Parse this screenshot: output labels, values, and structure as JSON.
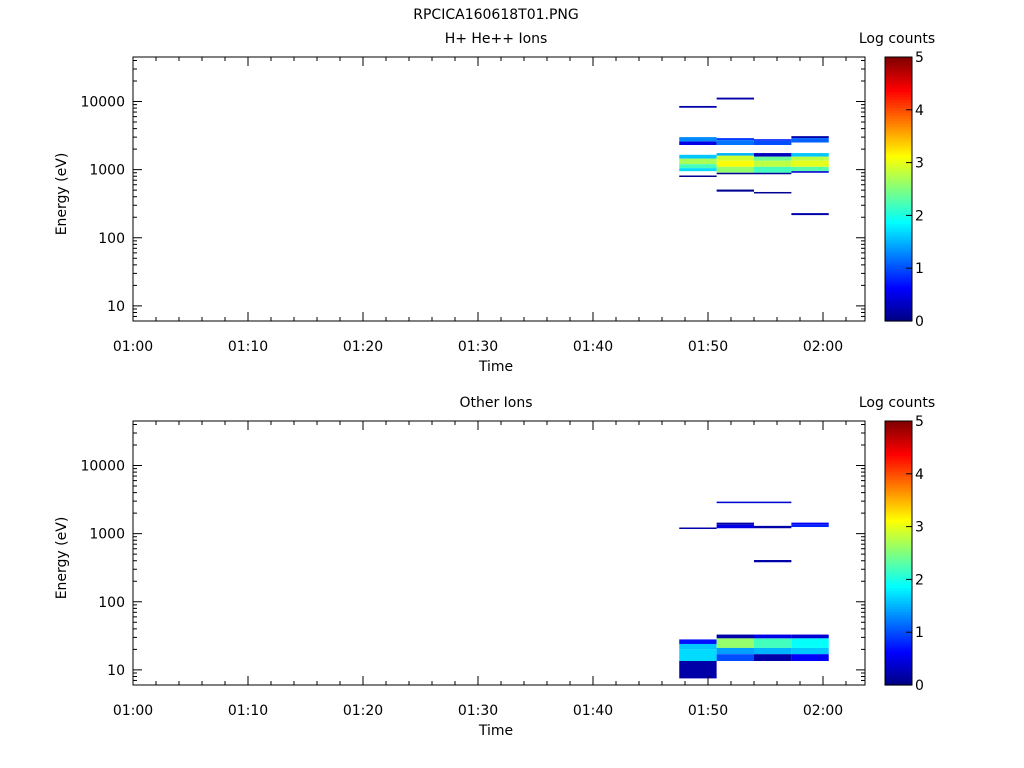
{
  "figure_title": "RPCICA160618T01.PNG",
  "chart_data": [
    {
      "type": "heatmap",
      "title": "H+ He++ Ions",
      "xlabel": "Time",
      "ylabel": "Energy (eV)",
      "x_ticks": [
        "01:00",
        "01:10",
        "01:20",
        "01:30",
        "01:40",
        "01:50",
        "02:00"
      ],
      "y_ticks": [
        "10",
        "100",
        "1000",
        "10000"
      ],
      "y_scale": "log",
      "ylim": [
        6,
        45000
      ],
      "colorbar": {
        "label": "Log counts",
        "ticks": [
          "0",
          "1",
          "2",
          "3",
          "4",
          "5"
        ],
        "range": [
          0,
          5
        ],
        "colormap": "jet"
      },
      "cells": [
        {
          "t0": "01:47:30",
          "t1": "01:50:45",
          "e0": 8100,
          "e1": 8600,
          "value": 0.2
        },
        {
          "t0": "01:47:30",
          "t1": "01:50:45",
          "e0": 2300,
          "e1": 2600,
          "value": 0.5
        },
        {
          "t0": "01:47:30",
          "t1": "01:50:45",
          "e0": 2600,
          "e1": 3000,
          "value": 1.3
        },
        {
          "t0": "01:47:30",
          "t1": "01:50:45",
          "e0": 1450,
          "e1": 1650,
          "value": 1.6
        },
        {
          "t0": "01:47:30",
          "t1": "01:50:45",
          "e0": 1200,
          "e1": 1450,
          "value": 2.7
        },
        {
          "t0": "01:47:30",
          "t1": "01:50:45",
          "e0": 1050,
          "e1": 1200,
          "value": 2.2
        },
        {
          "t0": "01:47:30",
          "t1": "01:50:45",
          "e0": 950,
          "e1": 1050,
          "value": 1.7
        },
        {
          "t0": "01:47:30",
          "t1": "01:50:45",
          "e0": 780,
          "e1": 820,
          "value": 0.1
        },
        {
          "t0": "01:50:45",
          "t1": "01:54:00",
          "e0": 10700,
          "e1": 11400,
          "value": 0.2
        },
        {
          "t0": "01:50:45",
          "t1": "01:54:00",
          "e0": 2700,
          "e1": 2900,
          "value": 0.9
        },
        {
          "t0": "01:50:45",
          "t1": "01:54:00",
          "e0": 2300,
          "e1": 2700,
          "value": 1.2
        },
        {
          "t0": "01:50:45",
          "t1": "01:54:00",
          "e0": 1600,
          "e1": 1750,
          "value": 1.5
        },
        {
          "t0": "01:50:45",
          "t1": "01:54:00",
          "e0": 1350,
          "e1": 1600,
          "value": 2.9
        },
        {
          "t0": "01:50:45",
          "t1": "01:54:00",
          "e0": 1100,
          "e1": 1350,
          "value": 3.1
        },
        {
          "t0": "01:50:45",
          "t1": "01:54:00",
          "e0": 900,
          "e1": 1100,
          "value": 2.6
        },
        {
          "t0": "01:50:45",
          "t1": "01:54:00",
          "e0": 860,
          "e1": 900,
          "value": 0.1
        },
        {
          "t0": "01:50:45",
          "t1": "01:54:00",
          "e0": 475,
          "e1": 510,
          "value": 0.1
        },
        {
          "t0": "01:54:00",
          "t1": "01:57:15",
          "e0": 2650,
          "e1": 2800,
          "value": 0.8
        },
        {
          "t0": "01:54:00",
          "t1": "01:57:15",
          "e0": 2300,
          "e1": 2650,
          "value": 1.0
        },
        {
          "t0": "01:54:00",
          "t1": "01:57:15",
          "e0": 1550,
          "e1": 1750,
          "value": 0.3
        },
        {
          "t0": "01:54:00",
          "t1": "01:57:15",
          "e0": 1350,
          "e1": 1550,
          "value": 2.4
        },
        {
          "t0": "01:54:00",
          "t1": "01:57:15",
          "e0": 1100,
          "e1": 1350,
          "value": 2.8
        },
        {
          "t0": "01:54:00",
          "t1": "01:57:15",
          "e0": 900,
          "e1": 1100,
          "value": 2.2
        },
        {
          "t0": "01:54:00",
          "t1": "01:57:15",
          "e0": 860,
          "e1": 900,
          "value": 0.1
        },
        {
          "t0": "01:54:00",
          "t1": "01:57:15",
          "e0": 450,
          "e1": 470,
          "value": 0.1
        },
        {
          "t0": "01:57:15",
          "t1": "02:00:30",
          "e0": 2900,
          "e1": 3100,
          "value": 0.2
        },
        {
          "t0": "01:57:15",
          "t1": "02:00:30",
          "e0": 2500,
          "e1": 2900,
          "value": 1.1
        },
        {
          "t0": "01:57:15",
          "t1": "02:00:30",
          "e0": 1550,
          "e1": 1750,
          "value": 1.6
        },
        {
          "t0": "01:57:15",
          "t1": "02:00:30",
          "e0": 1350,
          "e1": 1550,
          "value": 2.8
        },
        {
          "t0": "01:57:15",
          "t1": "02:00:30",
          "e0": 1100,
          "e1": 1350,
          "value": 3.0
        },
        {
          "t0": "01:57:15",
          "t1": "02:00:30",
          "e0": 950,
          "e1": 1100,
          "value": 2.3
        },
        {
          "t0": "01:57:15",
          "t1": "02:00:30",
          "e0": 900,
          "e1": 950,
          "value": 0.4
        },
        {
          "t0": "01:57:15",
          "t1": "02:00:30",
          "e0": 215,
          "e1": 230,
          "value": 0.2
        }
      ]
    },
    {
      "type": "heatmap",
      "title": "Other Ions",
      "xlabel": "Time",
      "ylabel": "Energy (eV)",
      "x_ticks": [
        "01:00",
        "01:10",
        "01:20",
        "01:30",
        "01:40",
        "01:50",
        "02:00"
      ],
      "y_ticks": [
        "10",
        "100",
        "1000",
        "10000"
      ],
      "y_scale": "log",
      "ylim": [
        6,
        45000
      ],
      "colorbar": {
        "label": "Log counts",
        "ticks": [
          "0",
          "1",
          "2",
          "3",
          "4",
          "5"
        ],
        "range": [
          0,
          5
        ],
        "colormap": "jet"
      },
      "cells": [
        {
          "t0": "01:47:30",
          "t1": "01:50:45",
          "e0": 1170,
          "e1": 1230,
          "value": 0.2
        },
        {
          "t0": "01:47:30",
          "t1": "01:50:45",
          "e0": 24,
          "e1": 28,
          "value": 0.7
        },
        {
          "t0": "01:47:30",
          "t1": "01:50:45",
          "e0": 20,
          "e1": 24,
          "value": 1.6
        },
        {
          "t0": "01:47:30",
          "t1": "01:50:45",
          "e0": 13.5,
          "e1": 20,
          "value": 1.7
        },
        {
          "t0": "01:47:30",
          "t1": "01:50:45",
          "e0": 7.5,
          "e1": 13.5,
          "value": 0.2
        },
        {
          "t0": "01:50:45",
          "t1": "01:54:00",
          "e0": 2800,
          "e1": 2950,
          "value": 0.4
        },
        {
          "t0": "01:50:45",
          "t1": "01:54:00",
          "e0": 1350,
          "e1": 1450,
          "value": 0.2
        },
        {
          "t0": "01:50:45",
          "t1": "01:54:00",
          "e0": 1200,
          "e1": 1350,
          "value": 0.5
        },
        {
          "t0": "01:50:45",
          "t1": "01:54:00",
          "e0": 29,
          "e1": 33,
          "value": 0.2
        },
        {
          "t0": "01:50:45",
          "t1": "01:54:00",
          "e0": 21,
          "e1": 29,
          "value": 2.6
        },
        {
          "t0": "01:50:45",
          "t1": "01:54:00",
          "e0": 17,
          "e1": 21,
          "value": 1.4
        },
        {
          "t0": "01:50:45",
          "t1": "01:54:00",
          "e0": 13.5,
          "e1": 17,
          "value": 1.0
        },
        {
          "t0": "01:54:00",
          "t1": "01:57:15",
          "e0": 2800,
          "e1": 2950,
          "value": 0.4
        },
        {
          "t0": "01:54:00",
          "t1": "01:57:15",
          "e0": 1200,
          "e1": 1300,
          "value": 0.2
        },
        {
          "t0": "01:54:00",
          "t1": "01:57:15",
          "e0": 380,
          "e1": 410,
          "value": 0.2
        },
        {
          "t0": "01:54:00",
          "t1": "01:57:15",
          "e0": 29,
          "e1": 33,
          "value": 0.5
        },
        {
          "t0": "01:54:00",
          "t1": "01:57:15",
          "e0": 21,
          "e1": 29,
          "value": 2.2
        },
        {
          "t0": "01:54:00",
          "t1": "01:57:15",
          "e0": 17,
          "e1": 21,
          "value": 1.5
        },
        {
          "t0": "01:54:00",
          "t1": "01:57:15",
          "e0": 13.5,
          "e1": 17,
          "value": 0.2
        },
        {
          "t0": "01:57:15",
          "t1": "02:00:30",
          "e0": 1350,
          "e1": 1450,
          "value": 0.6
        },
        {
          "t0": "01:57:15",
          "t1": "02:00:30",
          "e0": 1250,
          "e1": 1350,
          "value": 0.8
        },
        {
          "t0": "01:57:15",
          "t1": "02:00:30",
          "e0": 29,
          "e1": 33,
          "value": 0.4
        },
        {
          "t0": "01:57:15",
          "t1": "02:00:30",
          "e0": 21,
          "e1": 29,
          "value": 1.9
        },
        {
          "t0": "01:57:15",
          "t1": "02:00:30",
          "e0": 17,
          "e1": 21,
          "value": 1.6
        },
        {
          "t0": "01:57:15",
          "t1": "02:00:30",
          "e0": 13.5,
          "e1": 17,
          "value": 0.6
        }
      ]
    }
  ]
}
